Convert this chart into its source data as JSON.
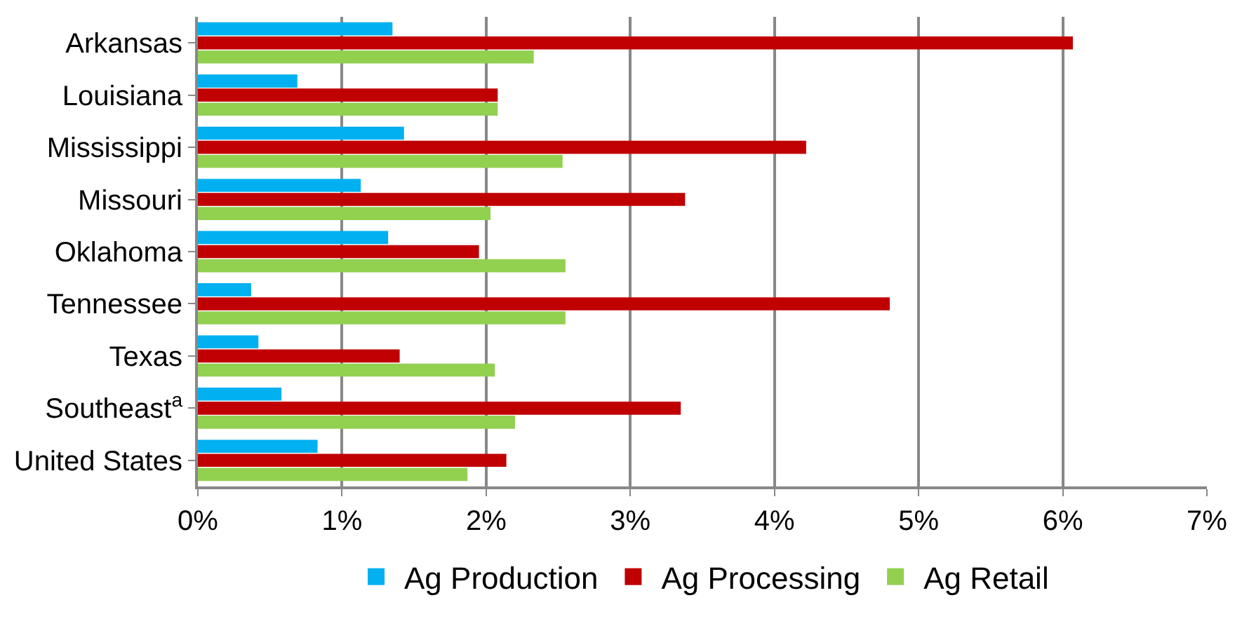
{
  "chart_data": {
    "type": "bar",
    "orientation": "horizontal",
    "categories": [
      "Arkansas",
      "Louisiana",
      "Mississippi",
      "Missouri",
      "Oklahoma",
      "Tennessee",
      "Texas",
      "Southeast$^{a}$",
      "United States"
    ],
    "series": [
      {
        "name": "Ag Production",
        "color": "#00b0f0",
        "values": [
          1.35,
          0.69,
          1.43,
          1.13,
          1.32,
          0.37,
          0.42,
          0.58,
          0.83
        ]
      },
      {
        "name": "Ag Processing",
        "color": "#c00000",
        "values": [
          6.07,
          2.08,
          4.22,
          3.38,
          1.95,
          4.8,
          1.4,
          3.35,
          2.14
        ]
      },
      {
        "name": "Ag Retail",
        "color": "#92d050",
        "values": [
          2.33,
          2.08,
          2.53,
          2.03,
          2.55,
          2.55,
          2.06,
          2.2,
          1.87
        ]
      }
    ],
    "xlim": [
      0,
      7
    ],
    "xticks": [
      {
        "value": 0,
        "label": "0%"
      },
      {
        "value": 1,
        "label": "1%"
      },
      {
        "value": 2,
        "label": "2%"
      },
      {
        "value": 3,
        "label": "3%"
      },
      {
        "value": 4,
        "label": "4%"
      },
      {
        "value": 5,
        "label": "5%"
      },
      {
        "value": 6,
        "label": "6%"
      },
      {
        "value": 7,
        "label": "7%"
      }
    ],
    "grid": "x",
    "legend": "bottom"
  }
}
